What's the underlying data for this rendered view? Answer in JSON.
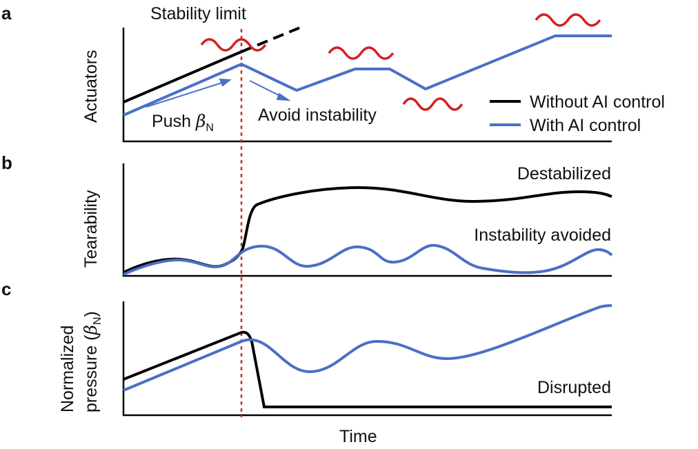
{
  "panels": {
    "a": {
      "letter": "a",
      "ylabel": "Actuators",
      "top_label": "Stability limit",
      "push_label": "Push ",
      "push_sym": "β",
      "push_sub": "N",
      "avoid_label": "Avoid instability"
    },
    "b": {
      "letter": "b",
      "ylabel": "Tearability",
      "destabilized": "Destabilized",
      "avoided": "Instability avoided"
    },
    "c": {
      "letter": "c",
      "ylabel_1": "Normalized",
      "ylabel_2": "pressure (",
      "ylabel_sym": "β",
      "ylabel_sub": "N",
      "ylabel_close": ")",
      "disrupted": "Disrupted",
      "xlabel": "Time"
    }
  },
  "legend": [
    {
      "label": "Without AI control",
      "color": "#000000"
    },
    {
      "label": "With AI control",
      "color": "#4a6fc6"
    }
  ],
  "colors": {
    "without": "#000000",
    "with": "#4a6fc6",
    "instability": "#d42020",
    "limit": "#c83030"
  }
}
